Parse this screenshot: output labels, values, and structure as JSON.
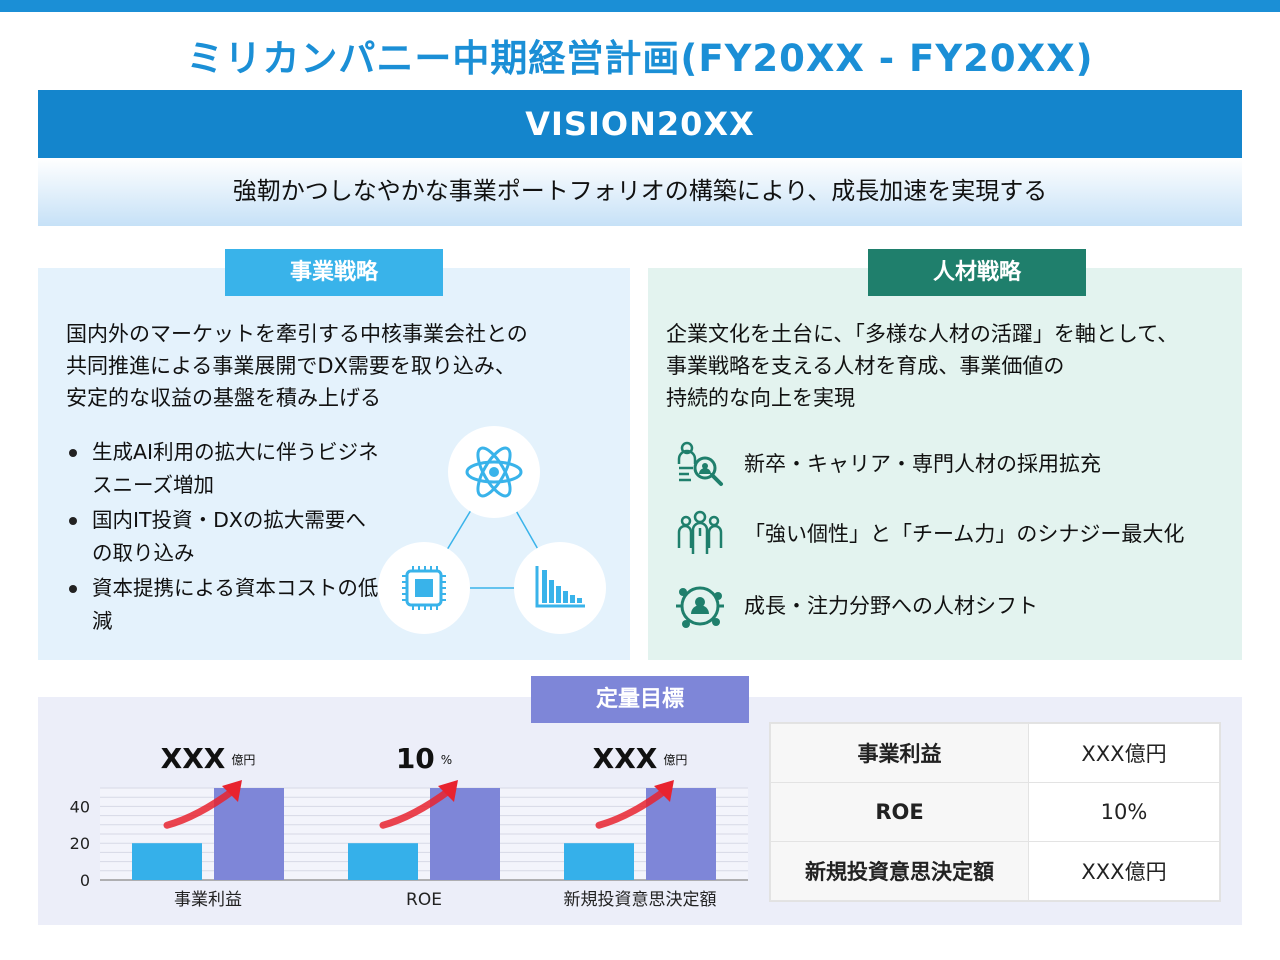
{
  "title": "ミリカンパニー中期経営計画(FY20XX - FY20XX)",
  "vision": {
    "label": "VISION20XX",
    "statement": "強靭かつしなやかな事業ポートフォリオの構築により、成長加速を実現する"
  },
  "business": {
    "tag": "事業戦略",
    "lines": [
      "国内外のマーケットを牽引する中核事業会社との",
      "共同推進による事業展開でDX需要を取り込み、",
      "安定的な収益の基盤を積み上げる"
    ],
    "bullets": [
      "生成AI利用の拡大に伴うビジネスニーズ増加",
      "国内IT投資・DXの拡大需要への取り込み",
      "資本提携による資本コストの低減"
    ],
    "icons": [
      "atom-icon",
      "chip-icon",
      "bar-chart-icon"
    ]
  },
  "hr": {
    "tag": "人材戦略",
    "lines": [
      "企業文化を土台に、「多様な人材の活躍」を軸として、",
      "事業戦略を支える人材を育成、事業価値の",
      "持続的な向上を実現"
    ],
    "items": [
      {
        "icon": "recruit-search-icon",
        "text": "新卒・キャリア・専門人材の採用拡充"
      },
      {
        "icon": "team-icon",
        "text": "「強い個性」と「チーム力」のシナジー最大化"
      },
      {
        "icon": "talent-shift-icon",
        "text": "成長・注力分野への人材シフト"
      }
    ]
  },
  "kpi": {
    "tag": "定量目標",
    "table": [
      {
        "label": "事業利益",
        "value": "XXX億円"
      },
      {
        "label": "ROE",
        "value": "10%"
      },
      {
        "label": "新規投資意思決定額",
        "value": "XXX億円"
      }
    ]
  },
  "chart_data": {
    "type": "bar",
    "categories": [
      "事業利益",
      "ROE",
      "新規投資意思決定額"
    ],
    "series": [
      {
        "values": [
          20,
          20,
          20
        ],
        "color": "#35b0ea"
      },
      {
        "values": [
          50,
          50,
          50
        ],
        "color": "#7e86d8"
      }
    ],
    "ylim": [
      0,
      50
    ],
    "yticks": [
      0,
      20,
      40
    ],
    "annotations": [
      {
        "value": "XXX",
        "unit": "億円"
      },
      {
        "value": "10",
        "unit": "%"
      },
      {
        "value": "XXX",
        "unit": "億円"
      }
    ],
    "arrow_color": "#e8232f",
    "grid": true
  }
}
